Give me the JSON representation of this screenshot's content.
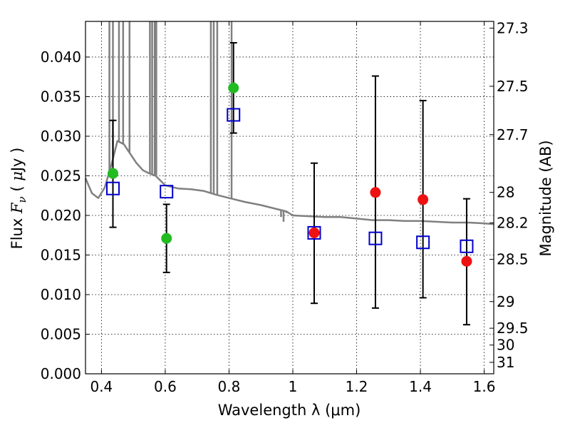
{
  "chart_data": {
    "type": "scatter",
    "xlabel": "Wavelength  λ (μm)",
    "ylabel_parts": {
      "a": "Flux ",
      "b": "F",
      "c": "ν",
      "d": " ( ",
      "e": "μ",
      "f": "Jy )"
    },
    "right_label": "Magnitude (AB)",
    "xlim": [
      0.35,
      1.63
    ],
    "ylim": [
      0,
      0.0445
    ],
    "grid": true,
    "x_ticks": [
      0.4,
      0.6,
      0.8,
      1,
      1.2,
      1.4,
      1.6
    ],
    "x_tick_labels": [
      "0.4",
      "0.6",
      "0.8",
      "1",
      "1.2",
      "1.4",
      "1.6"
    ],
    "y_ticks": [
      0,
      0.005,
      0.01,
      0.015,
      0.02,
      0.025,
      0.03,
      0.035,
      0.04
    ],
    "y_tick_labels": [
      "0.000",
      "0.005",
      "0.010",
      "0.015",
      "0.020",
      "0.025",
      "0.030",
      "0.035",
      "0.040"
    ],
    "mag_ticks": [
      27.3,
      27.5,
      27.7,
      28,
      28.2,
      28.5,
      29,
      29.5,
      30,
      31
    ],
    "mag_tick_labels": [
      "27.3",
      "27.5",
      "27.7",
      "28",
      "28.2",
      "28.5",
      "29",
      "29.5",
      "30",
      "31"
    ],
    "colors": {
      "model": "#808080",
      "model_flux": "#0000cc",
      "green_points": "#22bb22",
      "red_points": "#ee1111",
      "error_bars": "#000000"
    },
    "series": [
      {
        "kind": "model-spectrum",
        "x": [
          0.35,
          0.37,
          0.39,
          0.41,
          0.43,
          0.45,
          0.47,
          0.49,
          0.51,
          0.53,
          0.55,
          0.57,
          0.6,
          0.64,
          0.68,
          0.72,
          0.76,
          0.8,
          0.85,
          0.9,
          0.95,
          0.98,
          1.0,
          1.05,
          1.1,
          1.15,
          1.2,
          1.25,
          1.3,
          1.35,
          1.4,
          1.45,
          1.5,
          1.55,
          1.6,
          1.63
        ],
        "y": [
          0.0247,
          0.0228,
          0.0222,
          0.0235,
          0.0262,
          0.0294,
          0.029,
          0.0278,
          0.0266,
          0.0257,
          0.0253,
          0.025,
          0.0238,
          0.0234,
          0.0233,
          0.0231,
          0.0226,
          0.0222,
          0.0217,
          0.0213,
          0.0208,
          0.0205,
          0.02,
          0.0199,
          0.0198,
          0.0198,
          0.0196,
          0.0194,
          0.0194,
          0.0193,
          0.0193,
          0.0192,
          0.0191,
          0.0191,
          0.019,
          0.0189
        ],
        "spikes": [
          {
            "x": 0.425,
            "top": 0.0445
          },
          {
            "x": 0.436,
            "top": 0.0445
          },
          {
            "x": 0.455,
            "top": 0.0445
          },
          {
            "x": 0.468,
            "top": 0.0445
          },
          {
            "x": 0.488,
            "top": 0.0445
          },
          {
            "x": 0.552,
            "top": 0.0445
          },
          {
            "x": 0.559,
            "top": 0.0445
          },
          {
            "x": 0.567,
            "top": 0.0445
          },
          {
            "x": 0.572,
            "top": 0.0445
          },
          {
            "x": 0.743,
            "top": 0.0445
          },
          {
            "x": 0.752,
            "top": 0.0445
          },
          {
            "x": 0.763,
            "top": 0.0445
          },
          {
            "x": 0.808,
            "top": 0.0445
          },
          {
            "x": 0.963,
            "top": 0.0198
          },
          {
            "x": 0.971,
            "top": 0.0192
          },
          {
            "x": 0.98,
            "top": 0.0203
          }
        ]
      },
      {
        "kind": "model-flux-squares",
        "x": [
          0.436,
          0.604,
          0.814,
          1.067,
          1.259,
          1.408,
          1.545
        ],
        "y": [
          0.0234,
          0.023,
          0.0327,
          0.0178,
          0.0171,
          0.0166,
          0.0161
        ]
      },
      {
        "kind": "observed-green",
        "x": [
          0.436,
          0.604,
          0.814
        ],
        "y": [
          0.0253,
          0.0171,
          0.0361
        ],
        "err_low": [
          0.0185,
          0.0128,
          0.0304
        ],
        "err_high": [
          0.032,
          0.0214,
          0.0418
        ]
      },
      {
        "kind": "observed-red",
        "x": [
          1.067,
          1.259,
          1.408,
          1.545
        ],
        "y": [
          0.0178,
          0.0229,
          0.022,
          0.0142
        ],
        "err_low": [
          0.0089,
          0.0083,
          0.0096,
          0.0062
        ],
        "err_high": [
          0.0266,
          0.0376,
          0.0345,
          0.0221
        ]
      }
    ]
  }
}
